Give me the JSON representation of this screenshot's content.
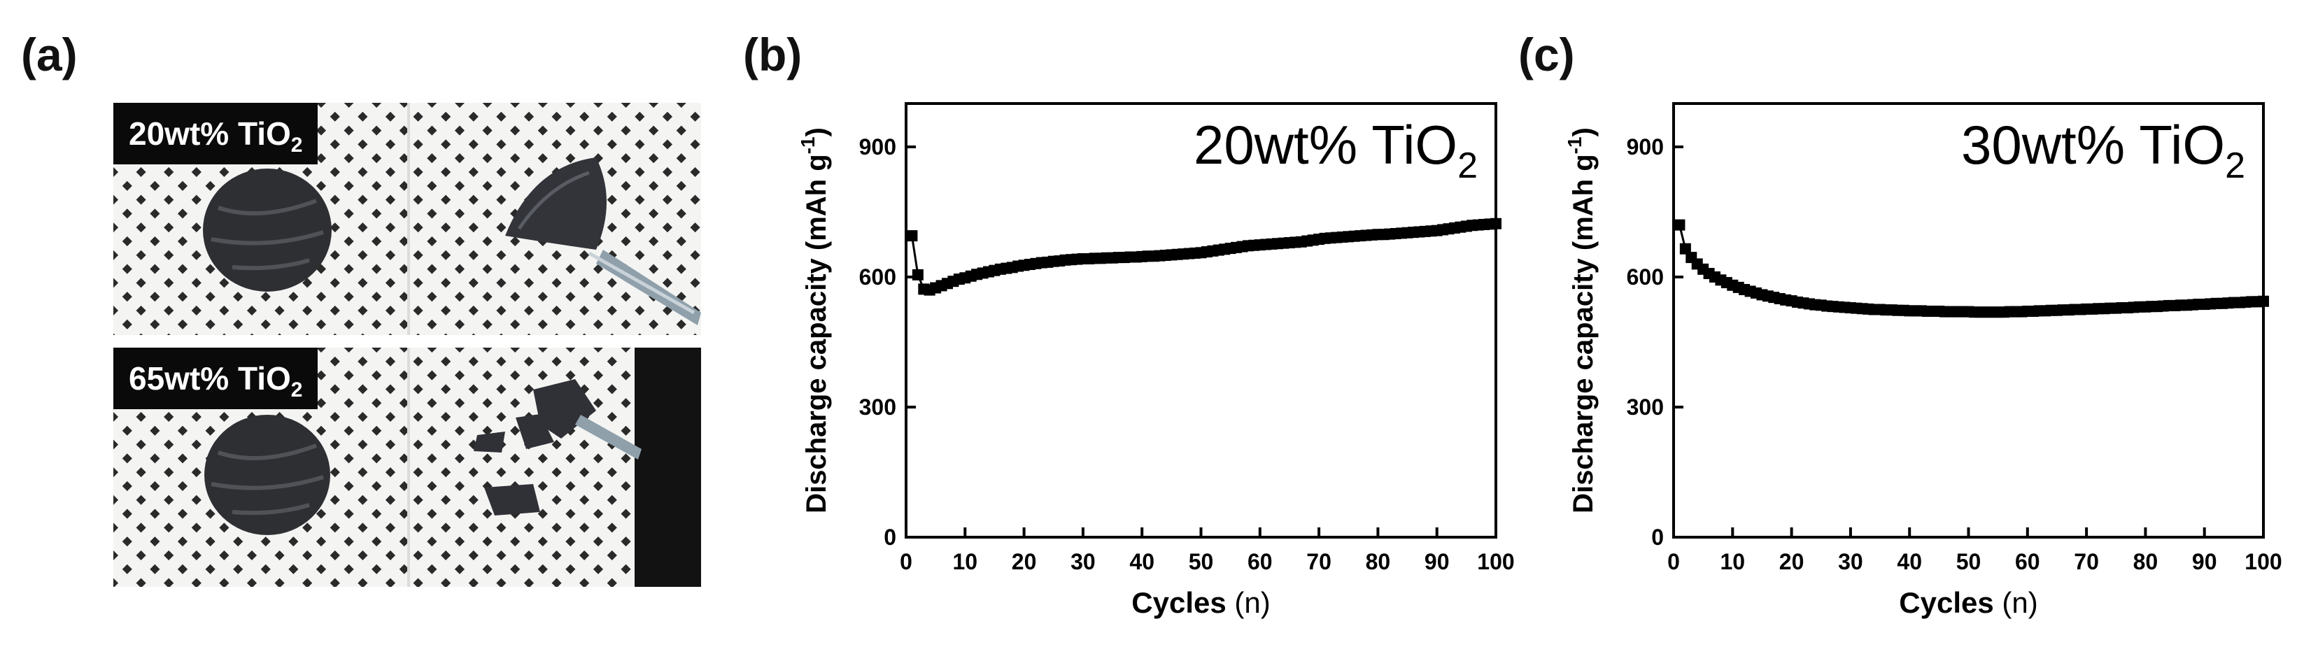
{
  "panels": {
    "a": {
      "label": "(a)",
      "tags": [
        {
          "base": "20wt% TiO",
          "sub": "2"
        },
        {
          "base": "65wt% TiO",
          "sub": "2"
        }
      ]
    },
    "b": {
      "label": "(b)"
    },
    "c": {
      "label": "(c)"
    }
  },
  "colors": {
    "ink": "#000000",
    "paper": "#f4f4f2",
    "dot": "#2a2a2a",
    "tag_bg": "#0a0a0a"
  },
  "icons": [
    "circular-electrode-disc",
    "flexed-electrode-film",
    "cracked-electrode-fragments",
    "tweezers"
  ],
  "chart_data": [
    {
      "type": "scatter",
      "panel": "b",
      "annotation": {
        "base": "20wt% TiO",
        "sub": "2"
      },
      "xlabel": {
        "bold": "Cycles",
        "unit": " (n)"
      },
      "ylabel": {
        "bold": "Discharge capacity (mAh g",
        "sup": "-1",
        "close": ")"
      },
      "xlim": [
        0,
        100
      ],
      "ylim": [
        0,
        1000
      ],
      "xticks": [
        0,
        10,
        20,
        30,
        40,
        50,
        60,
        70,
        80,
        90,
        100
      ],
      "yticks": [
        0,
        300,
        600,
        900
      ],
      "marker": "square",
      "x": [
        1,
        2,
        3,
        4,
        5,
        6,
        7,
        8,
        9,
        10,
        11,
        12,
        13,
        14,
        15,
        16,
        17,
        18,
        19,
        20,
        21,
        22,
        23,
        24,
        25,
        26,
        27,
        28,
        29,
        30,
        31,
        32,
        33,
        34,
        35,
        36,
        37,
        38,
        39,
        40,
        41,
        42,
        43,
        44,
        45,
        46,
        47,
        48,
        49,
        50,
        51,
        52,
        53,
        54,
        55,
        56,
        57,
        58,
        59,
        60,
        61,
        62,
        63,
        64,
        65,
        66,
        67,
        68,
        69,
        70,
        71,
        72,
        73,
        74,
        75,
        76,
        77,
        78,
        79,
        80,
        81,
        82,
        83,
        84,
        85,
        86,
        87,
        88,
        89,
        90,
        91,
        92,
        93,
        94,
        95,
        96,
        97,
        98,
        99,
        100
      ],
      "y": [
        695,
        605,
        572,
        570,
        575,
        580,
        585,
        590,
        595,
        598,
        602,
        606,
        609,
        612,
        615,
        618,
        620,
        622,
        625,
        627,
        629,
        631,
        633,
        634,
        636,
        637,
        639,
        640,
        641,
        642,
        642,
        643,
        643,
        644,
        644,
        645,
        645,
        646,
        646,
        647,
        648,
        648,
        649,
        650,
        651,
        652,
        653,
        654,
        655,
        656,
        658,
        660,
        662,
        664,
        666,
        668,
        670,
        672,
        673,
        674,
        675,
        676,
        677,
        678,
        679,
        680,
        681,
        683,
        685,
        687,
        689,
        690,
        691,
        692,
        693,
        694,
        695,
        696,
        697,
        698,
        698,
        699,
        700,
        701,
        702,
        703,
        704,
        705,
        706,
        707,
        709,
        711,
        713,
        715,
        717,
        719,
        720,
        721,
        722,
        723
      ]
    },
    {
      "type": "scatter",
      "panel": "c",
      "annotation": {
        "base": "30wt% TiO",
        "sub": "2"
      },
      "xlabel": {
        "bold": "Cycles",
        "unit": "  (n)"
      },
      "ylabel": {
        "bold": "Discharge capacity (mAh g",
        "sup": "-1",
        "close": ")"
      },
      "xlim": [
        0,
        100
      ],
      "ylim": [
        0,
        1000
      ],
      "xticks": [
        0,
        10,
        20,
        30,
        40,
        50,
        60,
        70,
        80,
        90,
        100
      ],
      "yticks": [
        0,
        300,
        600,
        900
      ],
      "marker": "square",
      "x": [
        1,
        2,
        3,
        4,
        5,
        6,
        7,
        8,
        9,
        10,
        11,
        12,
        13,
        14,
        15,
        16,
        17,
        18,
        19,
        20,
        21,
        22,
        23,
        24,
        25,
        26,
        27,
        28,
        29,
        30,
        31,
        32,
        33,
        34,
        35,
        36,
        37,
        38,
        39,
        40,
        41,
        42,
        43,
        44,
        45,
        46,
        47,
        48,
        49,
        50,
        51,
        52,
        53,
        54,
        55,
        56,
        57,
        58,
        59,
        60,
        61,
        62,
        63,
        64,
        65,
        66,
        67,
        68,
        69,
        70,
        71,
        72,
        73,
        74,
        75,
        76,
        77,
        78,
        79,
        80,
        81,
        82,
        83,
        84,
        85,
        86,
        87,
        88,
        89,
        90,
        91,
        92,
        93,
        94,
        95,
        96,
        97,
        98,
        99,
        100
      ],
      "y": [
        720,
        665,
        645,
        630,
        618,
        608,
        600,
        593,
        587,
        581,
        576,
        571,
        567,
        563,
        559,
        556,
        553,
        550,
        547,
        545,
        542,
        540,
        538,
        536,
        535,
        533,
        532,
        531,
        530,
        529,
        528,
        527,
        526,
        525,
        525,
        524,
        524,
        523,
        523,
        522,
        522,
        522,
        521,
        521,
        521,
        520,
        520,
        520,
        520,
        520,
        519,
        519,
        519,
        519,
        519,
        519,
        520,
        520,
        520,
        521,
        521,
        522,
        522,
        523,
        523,
        524,
        524,
        525,
        525,
        526,
        526,
        527,
        527,
        528,
        528,
        529,
        529,
        530,
        531,
        531,
        532,
        532,
        533,
        534,
        534,
        535,
        535,
        536,
        537,
        537,
        538,
        539,
        539,
        540,
        541,
        541,
        542,
        543,
        543,
        544
      ]
    }
  ]
}
